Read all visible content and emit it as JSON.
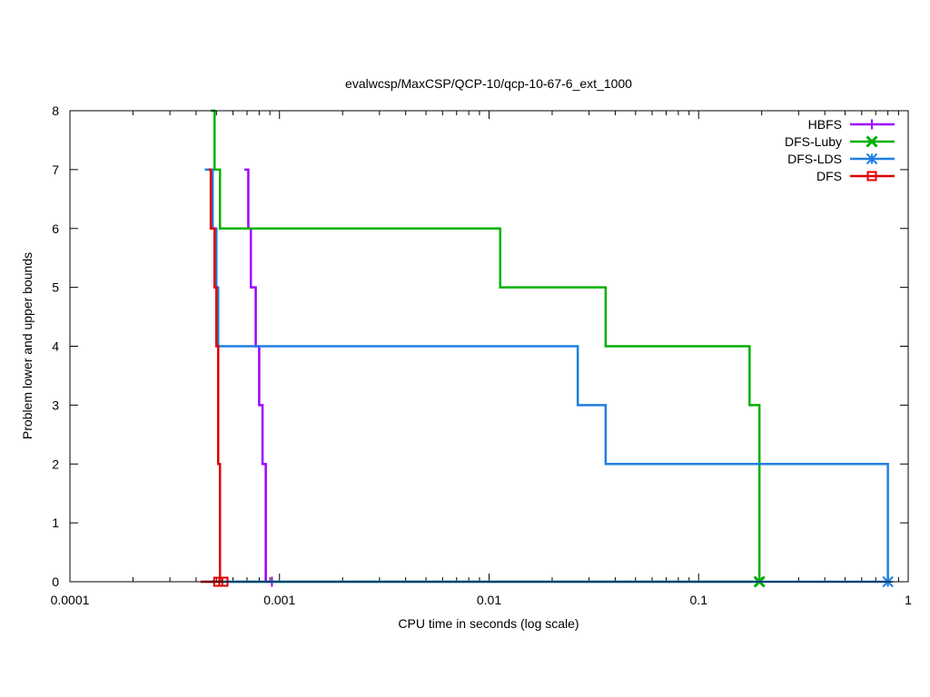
{
  "chart_data": {
    "type": "line",
    "title": "evalwcsp/MaxCSP/QCP-10/qcp-10-67-6_ext_1000",
    "xlabel": "CPU time in seconds (log scale)",
    "ylabel": "Problem lower and upper bounds",
    "x_scale": "log",
    "xlim": [
      0.0001,
      1
    ],
    "ylim": [
      0,
      8
    ],
    "x_ticks": [
      {
        "value": 0.0001,
        "label": "0.0001"
      },
      {
        "value": 0.001,
        "label": "0.001"
      },
      {
        "value": 0.01,
        "label": "0.01"
      },
      {
        "value": 0.1,
        "label": "0.1"
      },
      {
        "value": 1,
        "label": "1"
      }
    ],
    "y_ticks": [
      {
        "value": 0,
        "label": "0"
      },
      {
        "value": 1,
        "label": "1"
      },
      {
        "value": 2,
        "label": "2"
      },
      {
        "value": 3,
        "label": "3"
      },
      {
        "value": 4,
        "label": "4"
      },
      {
        "value": 5,
        "label": "5"
      },
      {
        "value": 6,
        "label": "6"
      },
      {
        "value": 7,
        "label": "7"
      },
      {
        "value": 8,
        "label": "8"
      }
    ],
    "legend_position": "top-right",
    "series": [
      {
        "name": "HBFS",
        "color": "#a000ff",
        "marker": "plus",
        "upper": [
          [
            0.00068,
            7
          ],
          [
            0.00071,
            6
          ],
          [
            0.00073,
            5
          ],
          [
            0.00077,
            4
          ],
          [
            0.0008,
            3
          ],
          [
            0.00083,
            2
          ],
          [
            0.00086,
            0
          ]
        ],
        "lower": [
          [
            0.00086,
            0
          ],
          [
            0.00092,
            0
          ]
        ],
        "marker_points": [
          [
            0.00092,
            0
          ]
        ]
      },
      {
        "name": "DFS-Luby",
        "color": "#00b000",
        "marker": "x",
        "upper": [
          [
            0.00047,
            8
          ],
          [
            0.00049,
            7
          ],
          [
            0.00052,
            6
          ],
          [
            0.0113,
            5
          ],
          [
            0.036,
            4
          ],
          [
            0.175,
            3
          ],
          [
            0.195,
            0
          ]
        ],
        "lower": [
          [
            0.00047,
            0
          ],
          [
            0.195,
            0
          ]
        ],
        "marker_points": [
          [
            0.195,
            0
          ]
        ]
      },
      {
        "name": "DFS-LDS",
        "color": "#1f7fe0",
        "marker": "star",
        "upper": [
          [
            0.00044,
            7
          ],
          [
            0.00048,
            6
          ],
          [
            0.0005,
            5
          ],
          [
            0.00051,
            4
          ],
          [
            0.0265,
            3
          ],
          [
            0.036,
            2
          ],
          [
            0.8,
            0
          ]
        ],
        "lower": [
          [
            0.00044,
            0
          ],
          [
            0.8,
            0
          ]
        ],
        "marker_points": [
          [
            0.8,
            0
          ]
        ]
      },
      {
        "name": "DFS",
        "color": "#e00000",
        "marker": "square",
        "upper": [
          [
            0.00046,
            7
          ],
          [
            0.00047,
            6
          ],
          [
            0.00049,
            5
          ],
          [
            0.0005,
            4
          ],
          [
            0.00051,
            2
          ],
          [
            0.00052,
            0
          ]
        ],
        "lower": [
          [
            0.00042,
            0
          ],
          [
            0.00052,
            0
          ]
        ],
        "marker_points": [
          [
            0.00051,
            0
          ],
          [
            0.00054,
            0
          ]
        ]
      }
    ]
  }
}
